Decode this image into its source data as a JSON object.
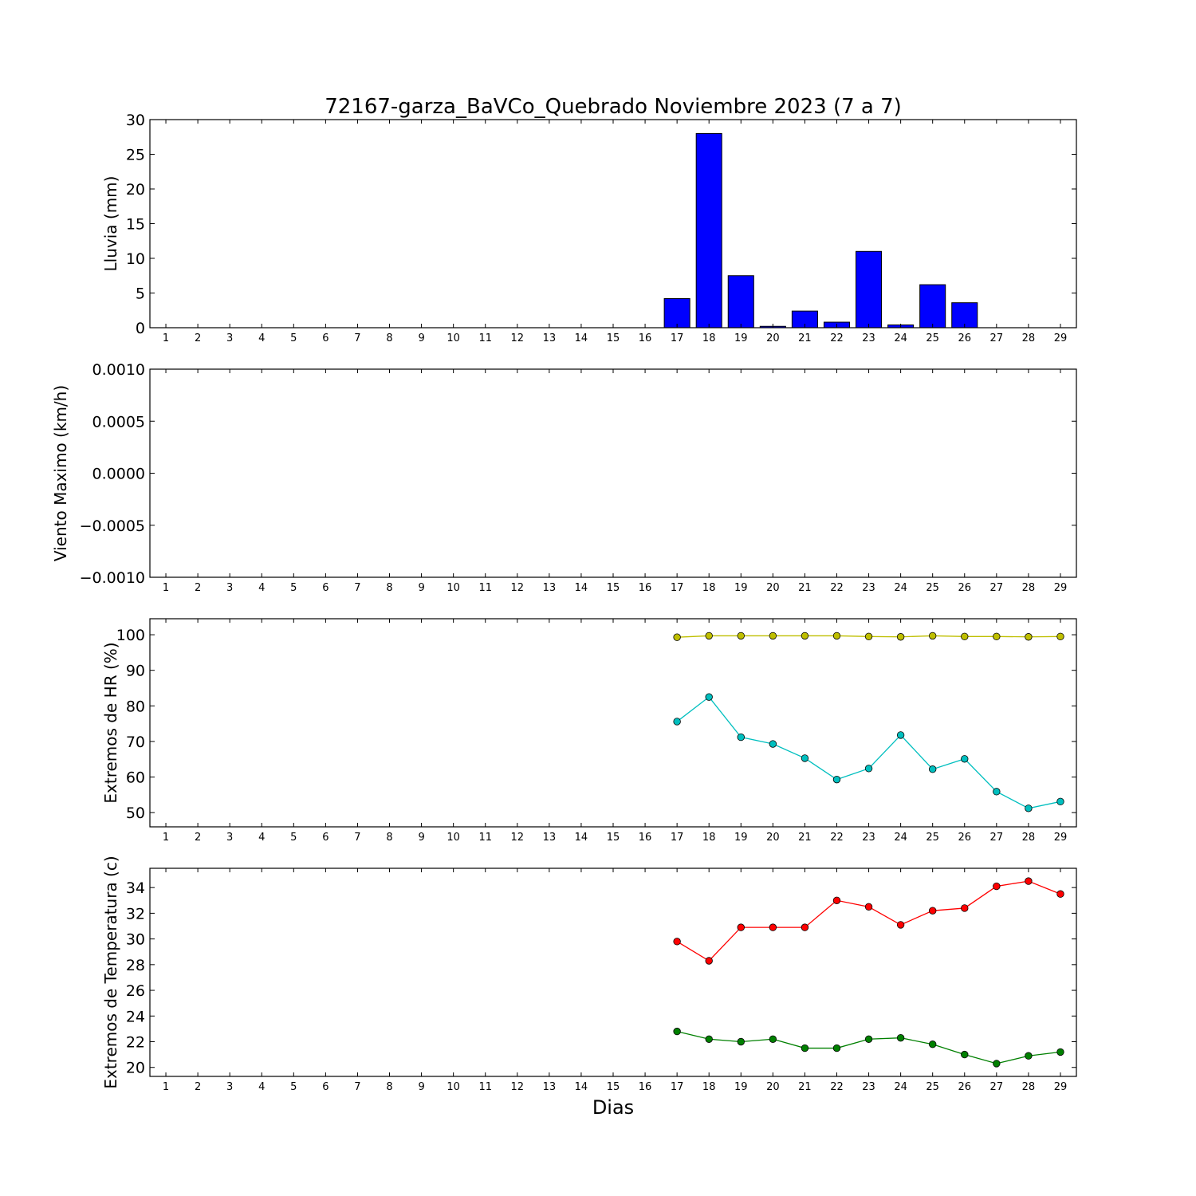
{
  "colors": {
    "rain_bar": "#0000ff",
    "hr_max": "#bfbf00",
    "hr_min": "#00bfbf",
    "temp_max": "#ff0000",
    "temp_min": "#008000"
  },
  "chart_data": [
    {
      "type": "bar",
      "title": "72167-garza_BaVCo_Quebrado Noviembre 2023  (7 a 7)",
      "ylabel": "Lluvia (mm)",
      "ylim": [
        0,
        30
      ],
      "yticks": [
        "0",
        "5",
        "10",
        "15",
        "20",
        "25",
        "30"
      ],
      "x": [
        17,
        18,
        19,
        20,
        21,
        22,
        23,
        24,
        25,
        26,
        27,
        28
      ],
      "values": [
        4.2,
        28.0,
        7.5,
        0.2,
        2.4,
        0.8,
        11.0,
        0.4,
        6.2,
        3.6,
        0.0,
        0.0
      ],
      "xticks": [
        "1",
        "2",
        "3",
        "4",
        "5",
        "6",
        "7",
        "8",
        "9",
        "10",
        "11",
        "12",
        "13",
        "14",
        "15",
        "16",
        "17",
        "18",
        "19",
        "20",
        "21",
        "22",
        "23",
        "24",
        "25",
        "26",
        "27",
        "28",
        "29"
      ]
    },
    {
      "type": "line",
      "ylabel": "Viento Maximo (km/h)",
      "ylim": [
        -0.001,
        0.001
      ],
      "yticks": [
        "−0.0010",
        "−0.0005",
        "0.0000",
        "0.0005",
        "0.0010"
      ],
      "series": [],
      "xticks": [
        "1",
        "2",
        "3",
        "4",
        "5",
        "6",
        "7",
        "8",
        "9",
        "10",
        "11",
        "12",
        "13",
        "14",
        "15",
        "16",
        "17",
        "18",
        "19",
        "20",
        "21",
        "22",
        "23",
        "24",
        "25",
        "26",
        "27",
        "28",
        "29"
      ]
    },
    {
      "type": "line",
      "ylabel": "Extremos de HR (%)",
      "ylim": [
        46,
        104.5
      ],
      "yticks": [
        "50",
        "60",
        "70",
        "80",
        "90",
        "100"
      ],
      "x": [
        17,
        18,
        19,
        20,
        21,
        22,
        23,
        24,
        25,
        26,
        27,
        28,
        29
      ],
      "series": [
        {
          "values": [
            99.3,
            99.7,
            99.7,
            99.7,
            99.7,
            99.7,
            99.5,
            99.4,
            99.7,
            99.5,
            99.5,
            99.4,
            99.5
          ]
        },
        {
          "values": [
            75.6,
            82.5,
            71.2,
            69.3,
            65.3,
            59.3,
            62.4,
            71.8,
            62.2,
            65.1,
            55.9,
            51.2,
            53.1
          ]
        }
      ],
      "xticks": [
        "1",
        "2",
        "3",
        "4",
        "5",
        "6",
        "7",
        "8",
        "9",
        "10",
        "11",
        "12",
        "13",
        "14",
        "15",
        "16",
        "17",
        "18",
        "19",
        "20",
        "21",
        "22",
        "23",
        "24",
        "25",
        "26",
        "27",
        "28",
        "29"
      ]
    },
    {
      "type": "line",
      "ylabel": "Extremos de Temperatura (c)",
      "xlabel": "Dias",
      "ylim": [
        19.3,
        35.5
      ],
      "yticks": [
        "20",
        "22",
        "24",
        "26",
        "28",
        "30",
        "32",
        "34"
      ],
      "x": [
        17,
        18,
        19,
        20,
        21,
        22,
        23,
        24,
        25,
        26,
        27,
        28,
        29
      ],
      "series": [
        {
          "values": [
            29.8,
            28.3,
            30.9,
            30.9,
            30.9,
            33.0,
            32.5,
            31.1,
            32.2,
            32.4,
            34.1,
            34.5,
            33.5
          ]
        },
        {
          "values": [
            22.8,
            22.2,
            22.0,
            22.2,
            21.5,
            21.5,
            22.2,
            22.3,
            21.8,
            21.0,
            20.3,
            20.9,
            21.2
          ]
        }
      ],
      "xticks": [
        "1",
        "2",
        "3",
        "4",
        "5",
        "6",
        "7",
        "8",
        "9",
        "10",
        "11",
        "12",
        "13",
        "14",
        "15",
        "16",
        "17",
        "18",
        "19",
        "20",
        "21",
        "22",
        "23",
        "24",
        "25",
        "26",
        "27",
        "28",
        "29"
      ]
    }
  ]
}
